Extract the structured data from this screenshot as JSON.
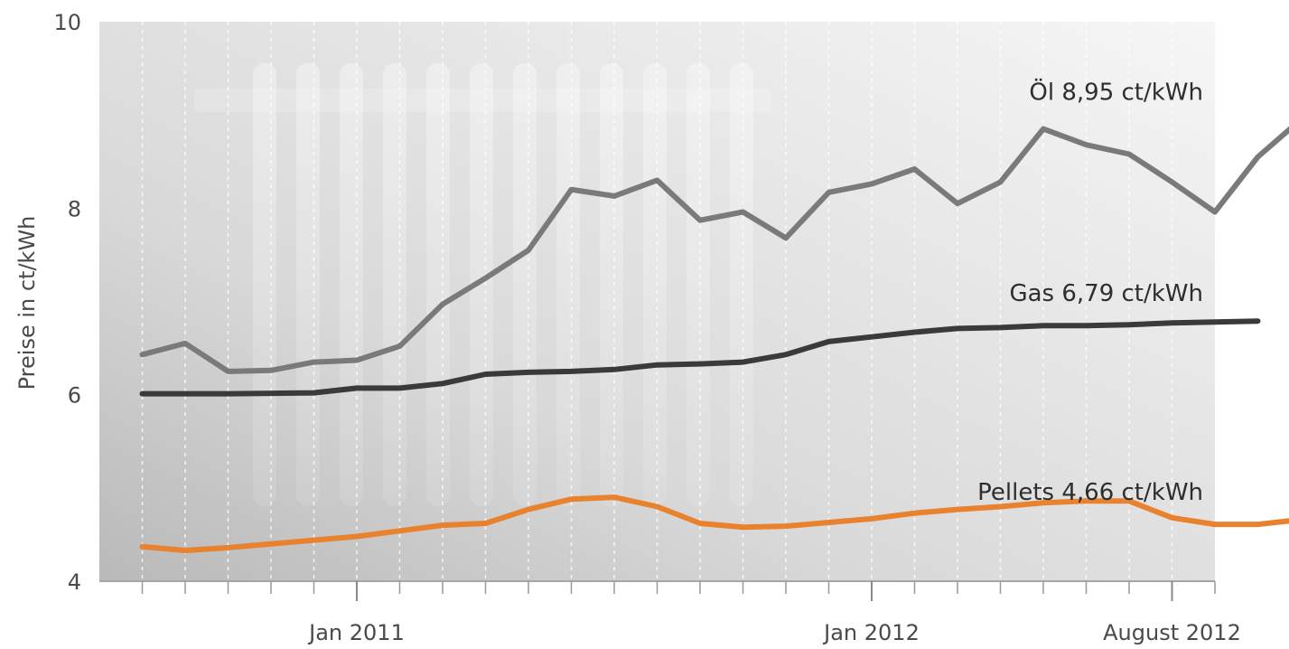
{
  "chart_data": {
    "type": "line",
    "title": "",
    "xlabel": "",
    "ylabel": "Preise in ct/kWh",
    "ylim": [
      4,
      10
    ],
    "y_ticks": [
      "4",
      "6",
      "8",
      "10"
    ],
    "x_tick_labels": [
      {
        "label": "Jan 2011",
        "date": "2011-01"
      },
      {
        "label": "Jan 2012",
        "date": "2012-01"
      },
      {
        "label": "August 2012",
        "date": "2012-08"
      }
    ],
    "x_range": [
      "2010-07",
      "2012-09"
    ],
    "grid": "vertical dotted",
    "series": [
      {
        "name": "Öl",
        "end_label": "Öl  8,95 ct/kWh",
        "color": "#7a7a7a",
        "points": [
          [
            "2010-08",
            6.43
          ],
          [
            "2010-09",
            6.55
          ],
          [
            "2010-10",
            6.25
          ],
          [
            "2010-11",
            6.26
          ],
          [
            "2010-12",
            6.35
          ],
          [
            "2011-01",
            6.37
          ],
          [
            "2011-02",
            6.52
          ],
          [
            "2011-03",
            6.97
          ],
          [
            "2011-04",
            7.25
          ],
          [
            "2011-05",
            7.55
          ],
          [
            "2011-06",
            8.2
          ],
          [
            "2011-07",
            8.13
          ],
          [
            "2011-08",
            8.3
          ],
          [
            "2011-09",
            7.87
          ],
          [
            "2011-10",
            7.96
          ],
          [
            "2011-11",
            7.68
          ],
          [
            "2011-12",
            8.17
          ],
          [
            "2012-01",
            8.26
          ],
          [
            "2012-02",
            8.42
          ],
          [
            "2012-03",
            8.05
          ],
          [
            "2012-04",
            8.28
          ],
          [
            "2012-05",
            8.85
          ],
          [
            "2012-06",
            8.68
          ],
          [
            "2012-07",
            8.58
          ],
          [
            "2012-08",
            8.28
          ],
          [
            "2012-09",
            7.96
          ],
          [
            "2012-10",
            8.55
          ],
          [
            "2012-11",
            8.95
          ]
        ]
      },
      {
        "name": "Gas",
        "end_label": "Gas  6,79 ct/kWh",
        "color": "#3a3a3a",
        "points": [
          [
            "2010-08",
            6.01
          ],
          [
            "2010-10",
            6.01
          ],
          [
            "2010-12",
            6.02
          ],
          [
            "2011-01",
            6.07
          ],
          [
            "2011-02",
            6.07
          ],
          [
            "2011-03",
            6.12
          ],
          [
            "2011-04",
            6.22
          ],
          [
            "2011-05",
            6.24
          ],
          [
            "2011-06",
            6.25
          ],
          [
            "2011-07",
            6.27
          ],
          [
            "2011-08",
            6.32
          ],
          [
            "2011-09",
            6.33
          ],
          [
            "2011-10",
            6.35
          ],
          [
            "2011-11",
            6.43
          ],
          [
            "2011-12",
            6.57
          ],
          [
            "2012-01",
            6.62
          ],
          [
            "2012-02",
            6.67
          ],
          [
            "2012-03",
            6.71
          ],
          [
            "2012-04",
            6.72
          ],
          [
            "2012-05",
            6.74
          ],
          [
            "2012-06",
            6.74
          ],
          [
            "2012-07",
            6.75
          ],
          [
            "2012-08",
            6.77
          ],
          [
            "2012-09",
            6.78
          ],
          [
            "2012-10",
            6.79
          ]
        ]
      },
      {
        "name": "Pellets",
        "end_label": "Pellets  4,66 ct/kWh",
        "color": "#e8822f",
        "points": [
          [
            "2010-08",
            4.37
          ],
          [
            "2010-09",
            4.33
          ],
          [
            "2010-10",
            4.36
          ],
          [
            "2010-11",
            4.4
          ],
          [
            "2010-12",
            4.44
          ],
          [
            "2011-01",
            4.48
          ],
          [
            "2011-02",
            4.54
          ],
          [
            "2011-03",
            4.6
          ],
          [
            "2011-04",
            4.62
          ],
          [
            "2011-05",
            4.77
          ],
          [
            "2011-06",
            4.88
          ],
          [
            "2011-07",
            4.9
          ],
          [
            "2011-08",
            4.8
          ],
          [
            "2011-09",
            4.62
          ],
          [
            "2011-10",
            4.58
          ],
          [
            "2011-11",
            4.59
          ],
          [
            "2011-12",
            4.63
          ],
          [
            "2012-01",
            4.67
          ],
          [
            "2012-02",
            4.73
          ],
          [
            "2012-03",
            4.77
          ],
          [
            "2012-04",
            4.8
          ],
          [
            "2012-05",
            4.84
          ],
          [
            "2012-06",
            4.86
          ],
          [
            "2012-07",
            4.86
          ],
          [
            "2012-08",
            4.68
          ],
          [
            "2012-09",
            4.61
          ],
          [
            "2012-10",
            4.61
          ],
          [
            "2012-11",
            4.66
          ]
        ]
      }
    ]
  }
}
